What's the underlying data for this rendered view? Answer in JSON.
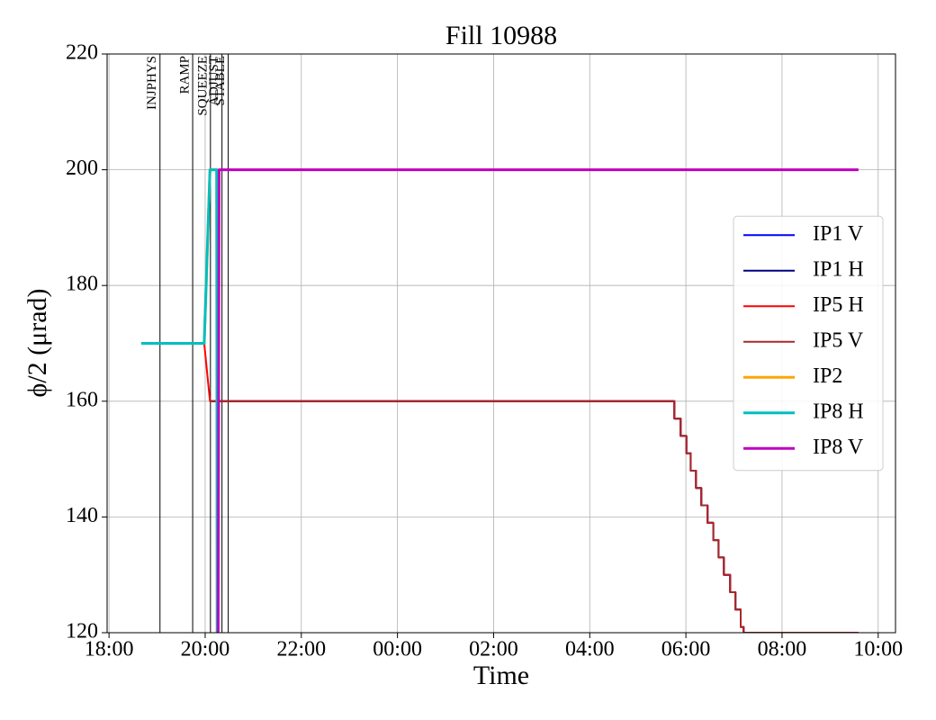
{
  "chart_data": {
    "type": "line",
    "title": "Fill 10988",
    "xlabel": "Time",
    "ylabel": "ϕ/2 (μrad)",
    "xlim": [
      17.96,
      34.36
    ],
    "ylim": [
      120,
      220
    ],
    "xticks": [
      {
        "value": 18,
        "label": "18:00"
      },
      {
        "value": 20,
        "label": "20:00"
      },
      {
        "value": 22,
        "label": "22:00"
      },
      {
        "value": 24,
        "label": "00:00"
      },
      {
        "value": 26,
        "label": "02:00"
      },
      {
        "value": 28,
        "label": "04:00"
      },
      {
        "value": 30,
        "label": "06:00"
      },
      {
        "value": 32,
        "label": "08:00"
      },
      {
        "value": 34,
        "label": "10:00"
      }
    ],
    "yticks": [
      120,
      140,
      160,
      180,
      200,
      220
    ],
    "grid": true,
    "legend": "center right",
    "phases": [
      {
        "label": "INJPHYS",
        "x": 19.06
      },
      {
        "label": "RAMP",
        "x": 19.74
      },
      {
        "label": "SQUEEZE",
        "x": 20.11
      },
      {
        "label": "ADJUST",
        "x": 20.35
      },
      {
        "label": "STABLE",
        "x": 20.48
      }
    ],
    "series": [
      {
        "name": "IP1 V",
        "color": "#0000ff",
        "linewidth": 2,
        "x": [
          20.1,
          29.76,
          29.76,
          29.89,
          29.89,
          30.01,
          30.01,
          30.1,
          30.1,
          30.21,
          30.21,
          30.32,
          30.32,
          30.45,
          30.45,
          30.57,
          30.57,
          30.68,
          30.68,
          30.79,
          30.79,
          30.92,
          30.92,
          31.03,
          31.03,
          31.14,
          31.14,
          31.2,
          31.2,
          33.59
        ],
        "values": [
          160,
          160,
          157,
          157,
          154,
          154,
          151,
          151,
          148,
          148,
          145,
          145,
          142,
          142,
          139,
          139,
          136,
          136,
          133,
          133,
          130,
          130,
          127,
          127,
          124,
          124,
          121,
          121,
          120,
          120
        ]
      },
      {
        "name": "IP1 H",
        "color": "#000080",
        "linewidth": 2,
        "x": [
          20.1,
          29.76,
          29.76,
          29.89,
          29.89,
          30.01,
          30.01,
          30.1,
          30.1,
          30.21,
          30.21,
          30.32,
          30.32,
          30.45,
          30.45,
          30.57,
          30.57,
          30.68,
          30.68,
          30.79,
          30.79,
          30.92,
          30.92,
          31.03,
          31.03,
          31.14,
          31.14,
          31.2,
          31.2,
          33.59
        ],
        "values": [
          160,
          160,
          157,
          157,
          154,
          154,
          151,
          151,
          148,
          148,
          145,
          145,
          142,
          142,
          139,
          139,
          136,
          136,
          133,
          133,
          130,
          130,
          127,
          127,
          124,
          124,
          121,
          121,
          120,
          120
        ]
      },
      {
        "name": "IP5 H",
        "color": "#ff0000",
        "linewidth": 2,
        "x": [
          18.67,
          19.98,
          20.1,
          29.76,
          29.76,
          29.89,
          29.89,
          30.01,
          30.01,
          30.1,
          30.1,
          30.21,
          30.21,
          30.32,
          30.32,
          30.45,
          30.45,
          30.57,
          30.57,
          30.68,
          30.68,
          30.79,
          30.79,
          30.92,
          30.92,
          31.03,
          31.03,
          31.14,
          31.14,
          31.2,
          31.2,
          33.59
        ],
        "values": [
          170,
          170,
          160,
          160,
          157,
          157,
          154,
          154,
          151,
          151,
          148,
          148,
          145,
          145,
          142,
          142,
          139,
          139,
          136,
          136,
          133,
          133,
          130,
          130,
          127,
          127,
          124,
          124,
          121,
          121,
          120,
          120
        ]
      },
      {
        "name": "IP5 V",
        "color": "#a52a2a",
        "linewidth": 2,
        "x": [
          20.1,
          29.76,
          29.76,
          29.89,
          29.89,
          30.01,
          30.01,
          30.1,
          30.1,
          30.21,
          30.21,
          30.32,
          30.32,
          30.45,
          30.45,
          30.57,
          30.57,
          30.68,
          30.68,
          30.79,
          30.79,
          30.92,
          30.92,
          31.03,
          31.03,
          31.14,
          31.14,
          31.2,
          31.2,
          33.59
        ],
        "values": [
          160,
          160,
          157,
          157,
          154,
          154,
          151,
          151,
          148,
          148,
          145,
          145,
          142,
          142,
          139,
          139,
          136,
          136,
          133,
          133,
          130,
          130,
          127,
          127,
          124,
          124,
          121,
          121,
          120,
          120
        ]
      },
      {
        "name": "IP2",
        "color": "#ffa500",
        "linewidth": 3,
        "x": [
          18.67,
          19.98,
          20.1,
          20.24,
          20.25
        ],
        "values": [
          170,
          170,
          200,
          200,
          120
        ]
      },
      {
        "name": "IP8 H",
        "color": "#00bfbf",
        "linewidth": 3,
        "x": [
          18.67,
          19.98,
          20.1,
          20.24,
          20.25
        ],
        "values": [
          170,
          170,
          200,
          200,
          120
        ]
      },
      {
        "name": "IP8 V",
        "color": "#bf00bf",
        "linewidth": 3,
        "x": [
          20.27,
          20.29,
          33.59
        ],
        "values": [
          120,
          200,
          200
        ]
      }
    ]
  }
}
